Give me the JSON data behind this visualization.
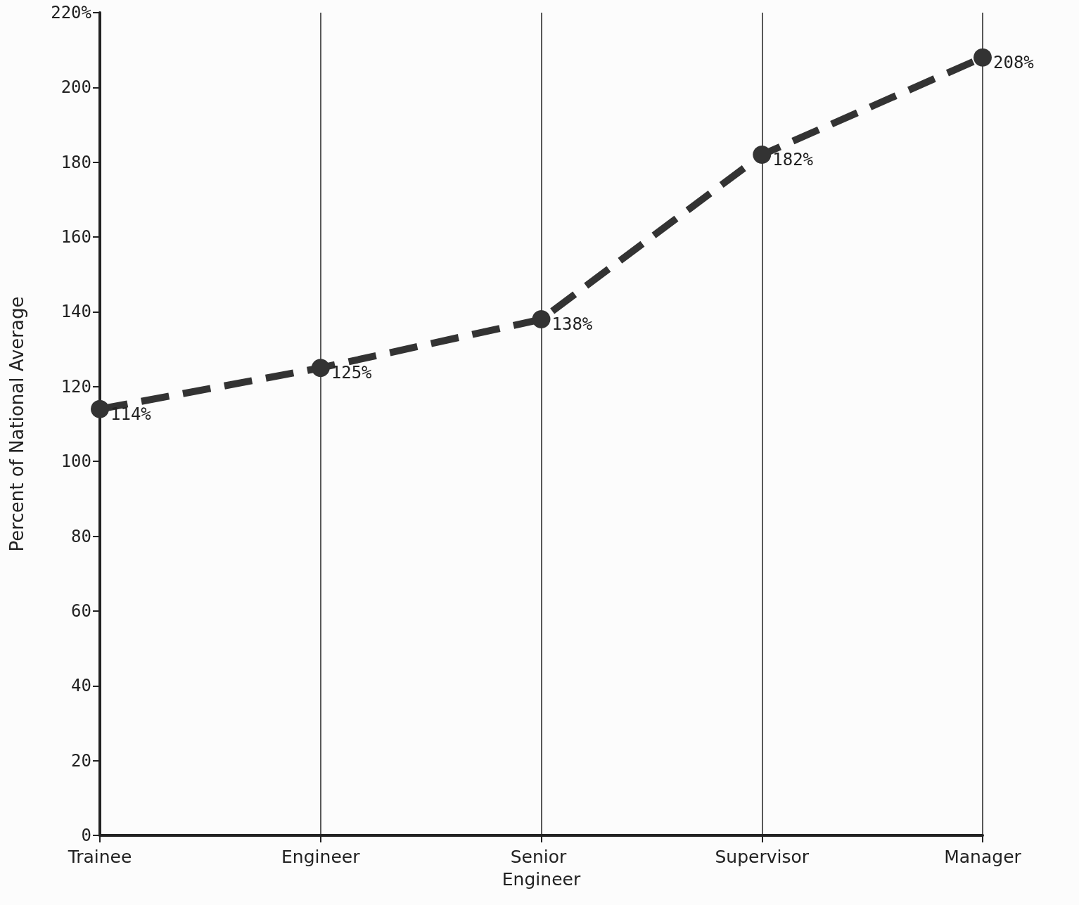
{
  "chart_data": {
    "type": "line",
    "ylabel": "Percent of National Average",
    "categories": [
      "Trainee",
      "Engineer",
      "Senior Engineer",
      "Supervisor",
      "Manager"
    ],
    "values": [
      114,
      125,
      138,
      182,
      208
    ],
    "value_labels": [
      "114%",
      "125%",
      "138%",
      "182%",
      "208%"
    ],
    "color": "#333333",
    "marker": "circle",
    "line_style": "dashed",
    "grid": "x",
    "ylim": [
      0,
      220
    ],
    "yticks": [
      0,
      20,
      40,
      60,
      80,
      100,
      120,
      140,
      160,
      180,
      200,
      {
        "value": 220,
        "label": "220%"
      }
    ]
  }
}
